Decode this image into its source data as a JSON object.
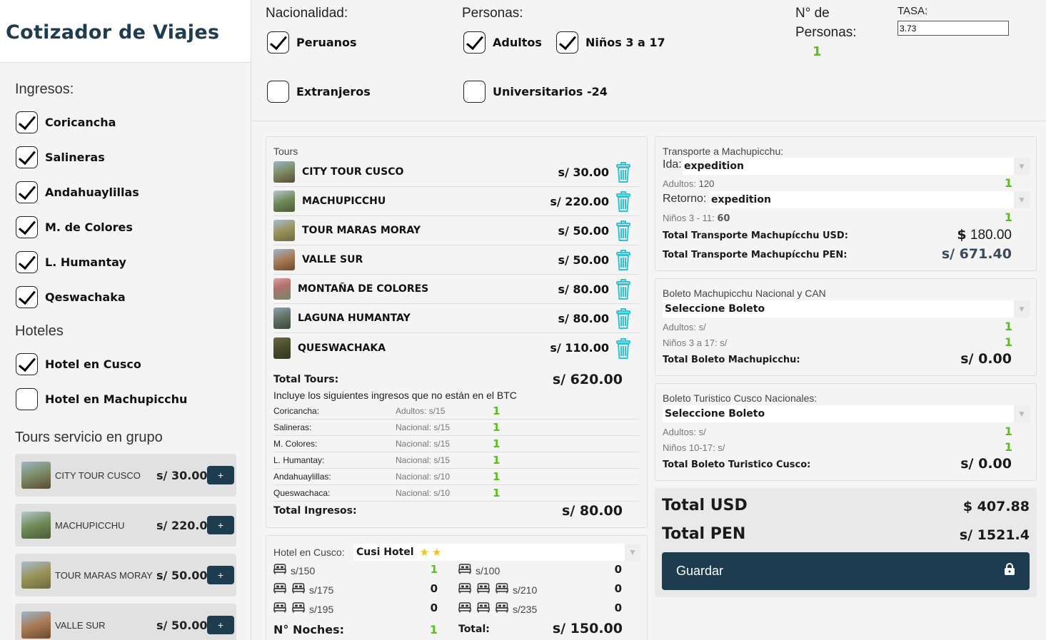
{
  "sidebar": {
    "title": "Cotizador de Viajes",
    "ingresos_heading": "Ingresos:",
    "ingresos": [
      {
        "label": "Coricancha",
        "checked": true
      },
      {
        "label": "Salineras",
        "checked": true
      },
      {
        "label": "Andahuaylillas",
        "checked": true
      },
      {
        "label": "M. de Colores",
        "checked": true
      },
      {
        "label": "L. Humantay",
        "checked": true
      },
      {
        "label": "Qeswachaka",
        "checked": true
      }
    ],
    "hoteles_heading": "Hoteles",
    "hoteles": [
      {
        "label": "Hotel en Cusco",
        "checked": true
      },
      {
        "label": "Hotel en Machupicchu",
        "checked": false
      }
    ],
    "grupo_heading": "Tours servicio en grupo",
    "grupo": [
      {
        "name": "CITY TOUR CUSCO",
        "price": "s/ 30.00",
        "button": "+"
      },
      {
        "name": "MACHUPICCHU",
        "price": "s/ 220.00",
        "button": "+"
      },
      {
        "name": "TOUR MARAS MORAY",
        "price": "s/ 50.00",
        "button": "+"
      },
      {
        "name": "VALLE SUR",
        "price": "s/ 50.00",
        "button": "+"
      }
    ]
  },
  "topbar": {
    "nacionalidad_label": "Nacionalidad:",
    "peruanos": {
      "label": "Peruanos",
      "checked": true
    },
    "extranjeros": {
      "label": "Extranjeros",
      "checked": false
    },
    "personas_label": "Personas:",
    "adultos": {
      "label": "Adultos",
      "checked": true
    },
    "ninos": {
      "label": "Niños 3 a 17",
      "checked": true
    },
    "universitarios": {
      "label": "Universitarios -24",
      "checked": false
    },
    "num_personas_label_1": "N° de",
    "num_personas_label_2": "Personas:",
    "num_personas": "1",
    "tasa_label": "TASA:",
    "tasa_value": "3.73"
  },
  "tours": {
    "title": "Tours",
    "items": [
      {
        "name": "CITY TOUR CUSCO",
        "price": "s/ 30.00"
      },
      {
        "name": "MACHUPICCHU",
        "price": "s/ 220.00"
      },
      {
        "name": "TOUR MARAS MORAY",
        "price": "s/ 50.00"
      },
      {
        "name": "VALLE SUR",
        "price": "s/ 50.00"
      },
      {
        "name": "MONTAÑA DE COLORES",
        "price": "s/ 80.00"
      },
      {
        "name": "LAGUNA HUMANTAY",
        "price": "s/ 80.00"
      },
      {
        "name": "QUESWACHAKA",
        "price": "s/ 110.00"
      }
    ],
    "total_label": "Total Tours:",
    "total_value": "s/ 620.00",
    "includes_note": "Incluye los siguientes ingresos que no están en el BTC",
    "ingresos": [
      {
        "name": "Coricancha:",
        "info": "Adultos: s/15",
        "count": "1"
      },
      {
        "name": "Salineras:",
        "info": "Nacional: s/15",
        "count": "1"
      },
      {
        "name": "M. Colores:",
        "info": "Nacional: s/15",
        "count": "1"
      },
      {
        "name": "L. Humantay:",
        "info": "Nacional: s/15",
        "count": "1"
      },
      {
        "name": "Andahuaylillas:",
        "info": "Nacional: s/10",
        "count": "1"
      },
      {
        "name": "Queswachaca:",
        "info": "Nacional: s/10",
        "count": "1"
      }
    ],
    "total_ingresos_label": "Total Ingresos:",
    "total_ingresos_value": "s/ 80.00"
  },
  "hotel": {
    "label": "Hotel en Cusco:",
    "selected": "Cusi Hotel",
    "stars": 2,
    "rooms": [
      {
        "price": "s/150",
        "count": "1",
        "beds": 1
      },
      {
        "price": "s/175",
        "count": "0",
        "beds": 2
      },
      {
        "price": "s/195",
        "count": "0",
        "beds": 2
      },
      {
        "price": "s/100",
        "count": "0",
        "beds": 1
      },
      {
        "price": "s/210",
        "count": "0",
        "beds": 3
      },
      {
        "price": "s/235",
        "count": "0",
        "beds": 3
      }
    ],
    "noches_label": "N° Noches:",
    "noches_value": "1",
    "total_label": "Total:",
    "total_value": "s/ 150.00"
  },
  "transporte": {
    "title": "Transporte a Machupicchu:",
    "ida_label": "Ida:",
    "ida_value": "expedition",
    "adultos_label": "Adultos:",
    "adultos_value": "120",
    "adultos_count": "1",
    "retorno_label": "Retorno:",
    "retorno_value": "expedition",
    "ninos_label": "Niños 3 - 11:",
    "ninos_value": "60",
    "ninos_count": "1",
    "total_usd_label": "Total Transporte Machupícchu USD:",
    "total_usd_currency": "$",
    "total_usd_value": "180.00",
    "total_pen_label": "Total Transporte Machupícchu PEN:",
    "total_pen_value": "s/ 671.40"
  },
  "boleto_mp": {
    "title": "Boleto Machupicchu Nacional y CAN",
    "select": "Seleccione Boleto",
    "adultos_label": "Adultos: s/",
    "adultos_count": "1",
    "ninos_label": "Niños 3 a 17: s/",
    "ninos_count": "1",
    "total_label": "Total Boleto Machupicchu:",
    "total_value": "s/ 0.00"
  },
  "boleto_cusco": {
    "title": "Boleto Turistico Cusco Nacionales:",
    "select": "Seleccione Boleto",
    "adultos_label": "Adultos: s/",
    "adultos_count": "1",
    "ninos_label": "Niños 10-17: s/",
    "ninos_count": "1",
    "total_label": "Total Boleto Turistico Cusco:",
    "total_value": "s/ 0.00"
  },
  "totales": {
    "usd_label": "Total USD",
    "usd_value": "$ 407.88",
    "pen_label": "Total PEN",
    "pen_value": "s/ 1521.4",
    "save_label": "Guardar"
  },
  "colors": {
    "primary": "#1d3c50",
    "accent_green": "#5bbd1f",
    "trash": "#2ec4d6",
    "star": "#f2c21b"
  }
}
